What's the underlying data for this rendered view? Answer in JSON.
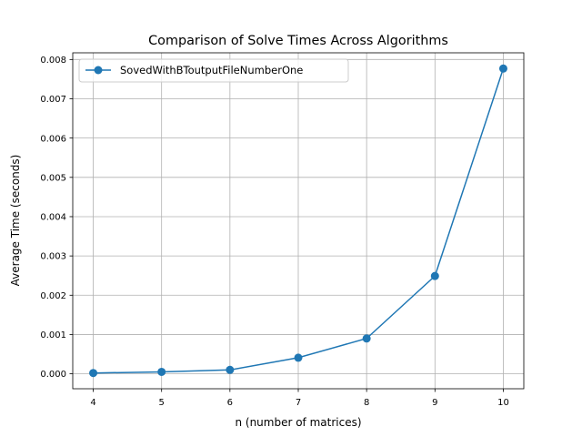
{
  "chart_data": {
    "type": "line",
    "title": "Comparison of Solve Times Across Algorithms",
    "xlabel": "n (number of matrices)",
    "ylabel": "Average Time (seconds)",
    "x": [
      4,
      5,
      6,
      7,
      8,
      9,
      10
    ],
    "xticks": [
      "4",
      "5",
      "6",
      "7",
      "8",
      "9",
      "10"
    ],
    "yticks": [
      "0.000",
      "0.001",
      "0.002",
      "0.003",
      "0.004",
      "0.005",
      "0.006",
      "0.007",
      "0.008"
    ],
    "ytick_values": [
      0,
      0.001,
      0.002,
      0.003,
      0.004,
      0.005,
      0.006,
      0.007,
      0.008
    ],
    "xlim": [
      3.7,
      10.3
    ],
    "ylim": [
      -0.00038,
      0.00817
    ],
    "grid": true,
    "legend_position": "upper-left",
    "series": [
      {
        "name": "SovedWithBToutputFileNumberOne",
        "color": "#1f77b4",
        "marker": "circle",
        "values": [
          2e-05,
          5e-05,
          0.0001,
          0.00041,
          0.0009,
          0.00249,
          0.00777
        ]
      }
    ]
  }
}
